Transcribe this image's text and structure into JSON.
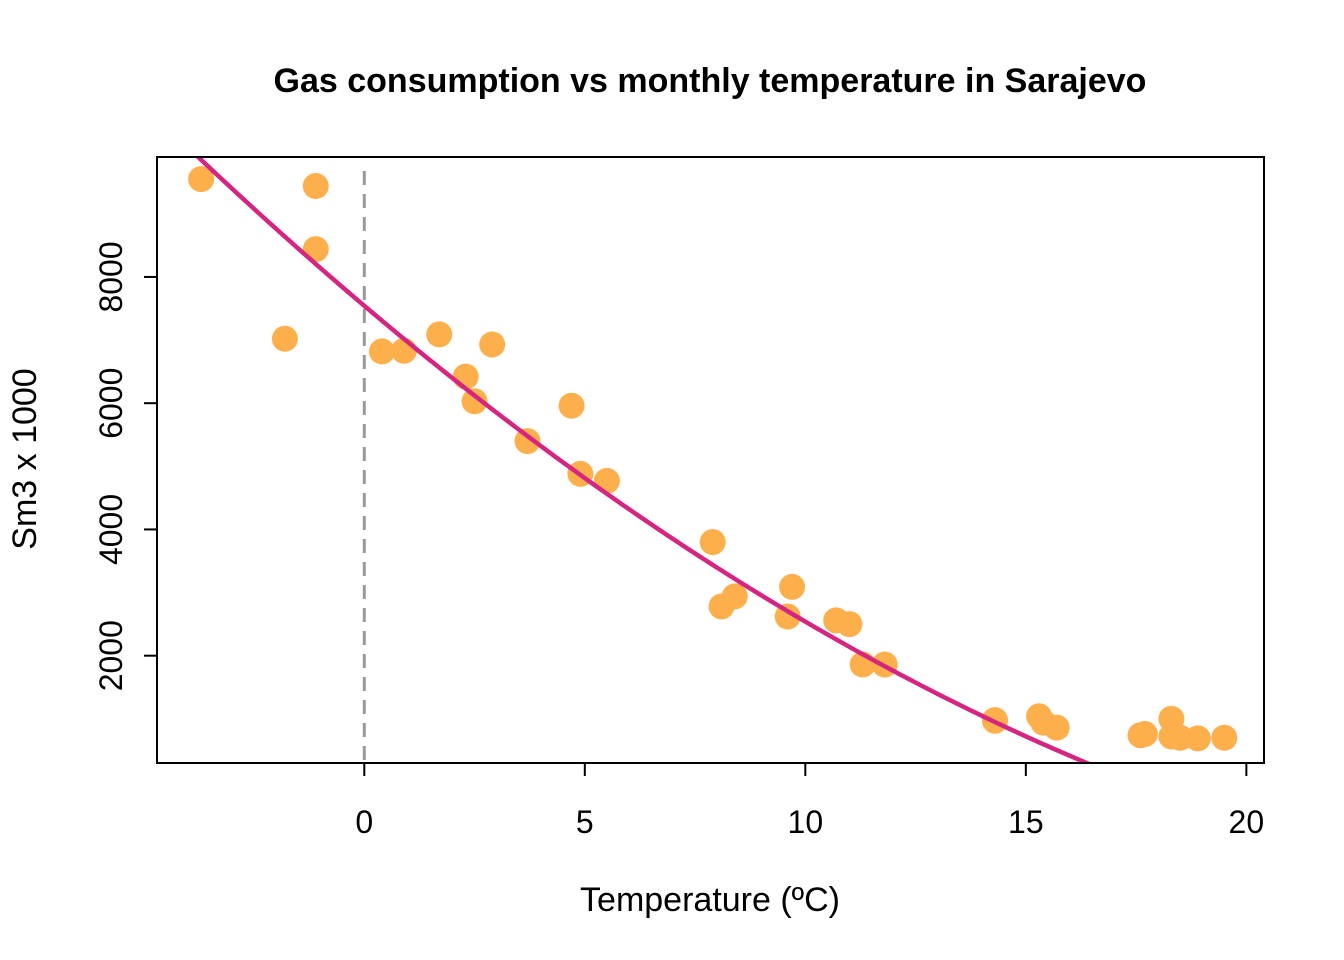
{
  "chart_data": {
    "type": "scatter",
    "title": "Gas consumption vs monthly temperature in Sarajevo",
    "xlabel": "Temperature (ºC)",
    "ylabel": "Sm3 x 1000",
    "xlim": [
      -4.7,
      20.4
    ],
    "ylim": [
      300,
      9900
    ],
    "x_ticks": [
      0,
      5,
      10,
      15,
      20
    ],
    "y_ticks": [
      2000,
      4000,
      6000,
      8000
    ],
    "reference_line": {
      "x": 0,
      "style": "dashed",
      "color": "#999999"
    },
    "point_color": "#FDAF4C",
    "fit_color": "#D62581",
    "points": [
      {
        "x": -3.7,
        "y": 9550
      },
      {
        "x": -1.8,
        "y": 7020
      },
      {
        "x": -1.1,
        "y": 9440
      },
      {
        "x": -1.1,
        "y": 8440
      },
      {
        "x": 0.4,
        "y": 6820
      },
      {
        "x": 0.9,
        "y": 6830
      },
      {
        "x": 1.7,
        "y": 7090
      },
      {
        "x": 2.3,
        "y": 6420
      },
      {
        "x": 2.5,
        "y": 6030
      },
      {
        "x": 2.9,
        "y": 6930
      },
      {
        "x": 3.7,
        "y": 5400
      },
      {
        "x": 4.7,
        "y": 5960
      },
      {
        "x": 4.9,
        "y": 4880
      },
      {
        "x": 5.5,
        "y": 4770
      },
      {
        "x": 7.9,
        "y": 3800
      },
      {
        "x": 8.1,
        "y": 2780
      },
      {
        "x": 8.4,
        "y": 2940
      },
      {
        "x": 9.6,
        "y": 2620
      },
      {
        "x": 9.7,
        "y": 3090
      },
      {
        "x": 10.7,
        "y": 2560
      },
      {
        "x": 11.0,
        "y": 2500
      },
      {
        "x": 11.3,
        "y": 1860
      },
      {
        "x": 11.8,
        "y": 1860
      },
      {
        "x": 14.3,
        "y": 980
      },
      {
        "x": 14.3,
        "y": 970
      },
      {
        "x": 15.3,
        "y": 1040
      },
      {
        "x": 15.4,
        "y": 940
      },
      {
        "x": 15.7,
        "y": 860
      },
      {
        "x": 17.6,
        "y": 740
      },
      {
        "x": 17.7,
        "y": 760
      },
      {
        "x": 18.3,
        "y": 1000
      },
      {
        "x": 18.3,
        "y": 720
      },
      {
        "x": 18.5,
        "y": 700
      },
      {
        "x": 18.9,
        "y": 690
      },
      {
        "x": 19.5,
        "y": 700
      }
    ],
    "fit_curve": {
      "type": "quadratic",
      "coefficients": {
        "a": 9.125,
        "b": -591.6,
        "c": 7543
      },
      "x_range": [
        -4.7,
        20.4
      ]
    }
  }
}
